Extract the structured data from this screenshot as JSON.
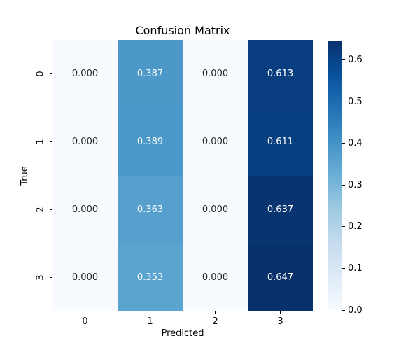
{
  "figure": {
    "background": "#ffffff"
  },
  "chart_data": {
    "type": "heatmap",
    "title": "Confusion Matrix",
    "xlabel": "Predicted",
    "ylabel": "True",
    "x_tick_labels": [
      "0",
      "1",
      "2",
      "3"
    ],
    "y_tick_labels": [
      "0",
      "1",
      "2",
      "3"
    ],
    "values": [
      [
        0.0,
        0.387,
        0.0,
        0.613
      ],
      [
        0.0,
        0.389,
        0.0,
        0.611
      ],
      [
        0.0,
        0.363,
        0.0,
        0.637
      ],
      [
        0.0,
        0.353,
        0.0,
        0.647
      ]
    ],
    "cell_labels": [
      [
        "0.000",
        "0.387",
        "0.000",
        "0.613"
      ],
      [
        "0.000",
        "0.389",
        "0.000",
        "0.611"
      ],
      [
        "0.000",
        "0.363",
        "0.000",
        "0.637"
      ],
      [
        "0.000",
        "0.353",
        "0.000",
        "0.647"
      ]
    ],
    "vmin": 0.0,
    "vmax": 0.647,
    "grid": false,
    "colormap": {
      "name": "Blues",
      "stops": [
        "#f7fbff",
        "#deebf7",
        "#c6dbef",
        "#9ecae1",
        "#6baed6",
        "#4292c6",
        "#2171b5",
        "#08519c",
        "#08306b"
      ]
    },
    "annotation_colors": {
      "on_light": "#262626",
      "on_dark": "#ffffff"
    },
    "colorbar": {
      "position": "right",
      "tick_values": [
        0.0,
        0.1,
        0.2,
        0.3,
        0.4,
        0.5,
        0.6
      ],
      "tick_labels": [
        "0.0",
        "0.1",
        "0.2",
        "0.3",
        "0.4",
        "0.5",
        "0.6"
      ]
    }
  }
}
